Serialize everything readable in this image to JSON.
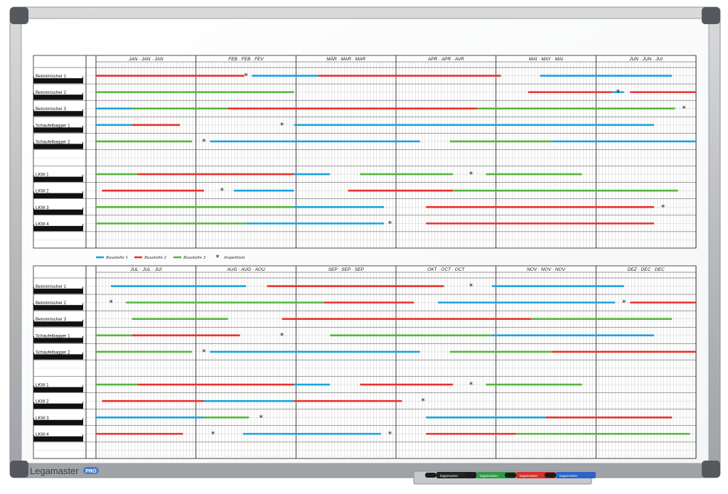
{
  "brand": {
    "name": "Legamaster",
    "badge": "PRO"
  },
  "months_top": [
    "JAN · JAN · JAN",
    "FEB · FEB · FEV",
    "MÄR · MAR · MAR",
    "APR · APR · AVR",
    "MAI · MAY · MAI",
    "JUN · JUN · JUI"
  ],
  "months_bottom": [
    "JUL · JUL · JUI",
    "AUG · AUG · AOU",
    "SEP · SEP · SEP",
    "OKT · OCT · OCT",
    "NOV · NOV · NOV",
    "DEZ · DEC · DEC"
  ],
  "rows": [
    "Betonmischer 1",
    "Betonmischer 2",
    "Betonmischer 3",
    "Schaufelbagger 1",
    "Schaufelbagger 2",
    "LKW 1",
    "LKW 2",
    "LKW 3",
    "LKW 4"
  ],
  "legend": [
    {
      "key": "b1",
      "label": "Baustelle 1",
      "color": "#1aa3df"
    },
    {
      "key": "b2",
      "label": "Baustelle 2",
      "color": "#e8322d"
    },
    {
      "key": "b3",
      "label": "Baustelle 3",
      "color": "#55b63b"
    },
    {
      "key": "insp",
      "label": "Inspektion",
      "color": "#111111"
    }
  ],
  "markers": [
    {
      "label": "legamaster",
      "color": "#222222"
    },
    {
      "label": "legamaster",
      "color": "#2e9a45"
    },
    {
      "label": "legamaster",
      "color": "#d3312b"
    },
    {
      "label": "legamaster",
      "color": "#2b63c4"
    }
  ],
  "plan_top": [
    {
      "bars": [
        [
          "b2",
          0,
          24.7
        ],
        [
          "b1",
          26,
          37
        ],
        [
          "b2",
          37,
          67.5
        ],
        [
          "b1",
          74,
          96
        ]
      ],
      "insp": [
        25
      ]
    },
    {
      "bars": [
        [
          "b3",
          0,
          33
        ],
        [
          "b2",
          72,
          86
        ],
        [
          "b1",
          86,
          88
        ],
        [
          "b2",
          89,
          100
        ]
      ],
      "insp": [
        87
      ]
    },
    {
      "bars": [
        [
          "b1",
          0,
          6
        ],
        [
          "b3",
          6,
          22
        ],
        [
          "b2",
          22,
          63.5
        ],
        [
          "b3",
          63.5,
          96.5
        ]
      ],
      "insp": [
        98
      ]
    },
    {
      "bars": [
        [
          "b1",
          0,
          6
        ],
        [
          "b2",
          6,
          14
        ],
        [
          "b1",
          33,
          93
        ]
      ],
      "insp": [
        31
      ]
    },
    {
      "bars": [
        [
          "b3",
          0,
          16
        ],
        [
          "b1",
          19,
          54
        ],
        [
          "b3",
          59,
          76
        ],
        [
          "b1",
          76,
          100
        ]
      ],
      "insp": [
        18
      ]
    },
    {
      "bars": [
        [
          "b3",
          0,
          7
        ],
        [
          "b2",
          7,
          33
        ],
        [
          "b1",
          33,
          39
        ],
        [
          "b3",
          44,
          59.5
        ],
        [
          "b3",
          65,
          81
        ]
      ],
      "insp": [
        62.5
      ]
    },
    {
      "bars": [
        [
          "b2",
          1,
          18
        ],
        [
          "b1",
          23,
          33
        ],
        [
          "b2",
          42,
          59.5
        ],
        [
          "b3",
          59.5,
          97
        ]
      ],
      "insp": [
        21
      ]
    },
    {
      "bars": [
        [
          "b3",
          0,
          33
        ],
        [
          "b1",
          33,
          48
        ],
        [
          "b2",
          55,
          93
        ]
      ],
      "insp": [
        94.5
      ]
    },
    {
      "bars": [
        [
          "b3",
          0,
          25
        ],
        [
          "b1",
          25,
          48
        ],
        [
          "b2",
          55,
          93
        ]
      ],
      "insp": [
        49
      ]
    }
  ],
  "plan_bottom": [
    {
      "bars": [
        [
          "b1",
          2.5,
          25
        ],
        [
          "b2",
          28.5,
          58
        ],
        [
          "b1",
          66,
          88
        ]
      ],
      "insp": [
        62.5
      ]
    },
    {
      "bars": [
        [
          "b3",
          5,
          38
        ],
        [
          "b2",
          38,
          53
        ],
        [
          "b1",
          57,
          86.5
        ],
        [
          "b2",
          89,
          100
        ]
      ],
      "insp": [
        2.5,
        88
      ]
    },
    {
      "bars": [
        [
          "b3",
          6,
          22
        ],
        [
          "b2",
          31,
          72.5
        ],
        [
          "b3",
          72.5,
          96
        ]
      ],
      "insp": []
    },
    {
      "bars": [
        [
          "b3",
          0,
          6
        ],
        [
          "b2",
          6,
          24
        ],
        [
          "b3",
          39,
          66
        ],
        [
          "b1",
          66,
          93
        ]
      ],
      "insp": [
        31
      ]
    },
    {
      "bars": [
        [
          "b3",
          0,
          16
        ],
        [
          "b1",
          19,
          54
        ],
        [
          "b3",
          59,
          76
        ],
        [
          "b2",
          76,
          100
        ]
      ],
      "insp": [
        18
      ]
    },
    {
      "bars": [
        [
          "b3",
          0,
          7
        ],
        [
          "b2",
          7,
          33
        ],
        [
          "b1",
          33,
          39
        ],
        [
          "b2",
          44,
          59.5
        ],
        [
          "b3",
          65,
          81
        ]
      ],
      "insp": [
        62.5
      ]
    },
    {
      "bars": [
        [
          "b2",
          1,
          18
        ],
        [
          "b1",
          18,
          33
        ],
        [
          "b2",
          33,
          51
        ]
      ],
      "insp": [
        54.5
      ]
    },
    {
      "bars": [
        [
          "b1",
          0,
          18
        ],
        [
          "b3",
          18,
          25.5
        ],
        [
          "b1",
          55,
          75
        ],
        [
          "b2",
          75,
          96
        ]
      ],
      "insp": [
        27.5
      ]
    },
    {
      "bars": [
        [
          "b2",
          0,
          14.5
        ],
        [
          "b1",
          24.5,
          47.5
        ],
        [
          "b2",
          55,
          70
        ],
        [
          "b3",
          70,
          99
        ]
      ],
      "insp": [
        19.5,
        49
      ]
    }
  ]
}
